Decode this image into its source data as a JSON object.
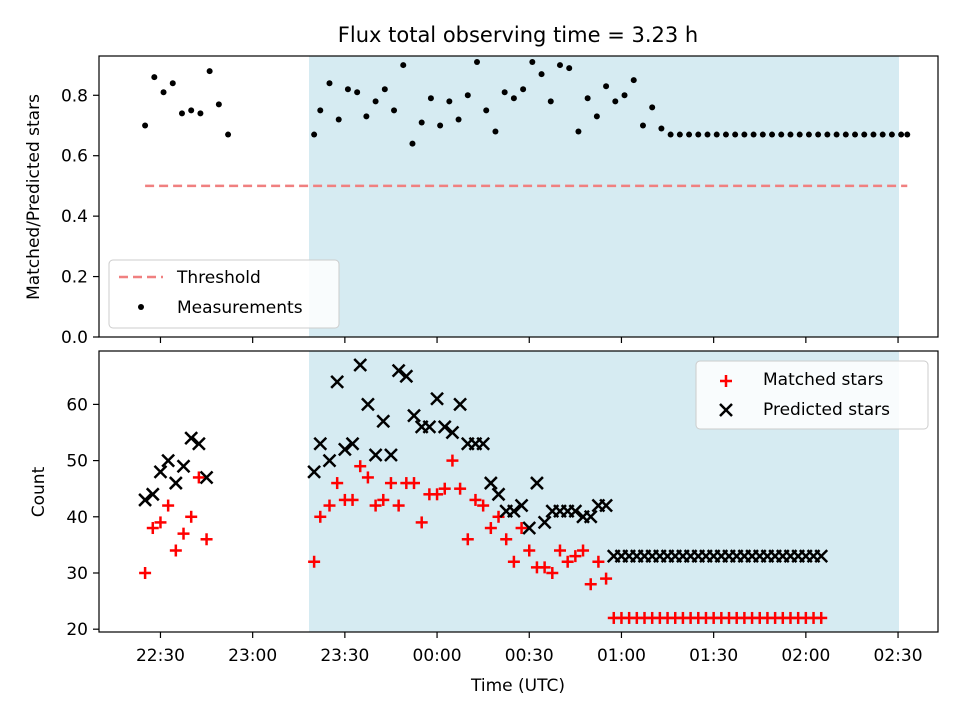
{
  "title": "Flux total observing time = 3.23 h",
  "colors": {
    "threshold": "#f08080",
    "measurement": "#000000",
    "matched": "#ff0000",
    "predicted": "#000000",
    "shade": "#add8e6"
  },
  "chart_data": [
    {
      "type": "scatter",
      "ylabel": "Matched/Predicted stars",
      "ylim": [
        0,
        0.93
      ],
      "yticks": [
        0.0,
        0.2,
        0.4,
        0.6,
        0.8
      ],
      "ytick_labels": [
        "0.0",
        "0.2",
        "0.4",
        "0.6",
        "0.8"
      ],
      "legend_position": "lower left",
      "shaded_region": [
        "23:20",
        "02:33"
      ],
      "series": [
        {
          "name": "Threshold",
          "style": "dashed-line",
          "x": [
            "22:25",
            "02:33"
          ],
          "y": [
            0.5,
            0.5
          ]
        },
        {
          "name": "Measurements",
          "style": "dot",
          "x": [
            "22:25",
            "22:28",
            "22:31",
            "22:34",
            "22:37",
            "22:40",
            "22:43",
            "22:46",
            "22:49",
            "22:52",
            "23:20",
            "23:22",
            "23:25",
            "23:28",
            "23:31",
            "23:34",
            "23:37",
            "23:40",
            "23:43",
            "23:46",
            "23:49",
            "23:52",
            "23:55",
            "23:58",
            "00:01",
            "00:04",
            "00:07",
            "00:10",
            "00:13",
            "00:16",
            "00:19",
            "00:22",
            "00:25",
            "00:28",
            "00:31",
            "00:34",
            "00:37",
            "00:40",
            "00:43",
            "00:46",
            "00:49",
            "00:52",
            "00:55",
            "00:58",
            "01:01",
            "01:04",
            "01:07",
            "01:10",
            "01:13",
            "01:16",
            "01:19",
            "01:22",
            "01:25",
            "01:28",
            "01:31",
            "01:34",
            "01:37",
            "01:40",
            "01:43",
            "01:46",
            "01:49",
            "01:52",
            "01:55",
            "01:58",
            "02:01",
            "02:04",
            "02:07",
            "02:10",
            "02:13",
            "02:16",
            "02:19",
            "02:22",
            "02:25",
            "02:28",
            "02:31",
            "02:33"
          ],
          "y": [
            0.7,
            0.86,
            0.81,
            0.84,
            0.74,
            0.75,
            0.74,
            0.88,
            0.77,
            0.67,
            0.67,
            0.75,
            0.84,
            0.72,
            0.82,
            0.81,
            0.73,
            0.78,
            0.82,
            0.75,
            0.9,
            0.64,
            0.71,
            0.79,
            0.7,
            0.78,
            0.72,
            0.8,
            0.91,
            0.75,
            0.68,
            0.81,
            0.79,
            0.82,
            0.91,
            0.87,
            0.78,
            0.9,
            0.89,
            0.68,
            0.79,
            0.73,
            0.83,
            0.78,
            0.8,
            0.85,
            0.7,
            0.76,
            0.69,
            0.67,
            0.67,
            0.67,
            0.67,
            0.67,
            0.67,
            0.67,
            0.67,
            0.67,
            0.67,
            0.67,
            0.67,
            0.67,
            0.67,
            0.67,
            0.67,
            0.67,
            0.67,
            0.67,
            0.67,
            0.67,
            0.67,
            0.67,
            0.67,
            0.67,
            0.67,
            0.67
          ]
        }
      ]
    },
    {
      "type": "scatter",
      "xlabel": "Time (UTC)",
      "ylabel": "Count",
      "xlim": [
        "22:10",
        "02:43"
      ],
      "ylim": [
        19.5,
        69.5
      ],
      "yticks": [
        20,
        30,
        40,
        50,
        60
      ],
      "ytick_labels": [
        "20",
        "30",
        "40",
        "50",
        "60"
      ],
      "xticks": [
        "22:30",
        "23:00",
        "23:30",
        "00:00",
        "00:30",
        "01:00",
        "01:30",
        "02:00",
        "02:30"
      ],
      "legend_position": "upper right",
      "shaded_region": [
        "23:20",
        "02:33"
      ],
      "series": [
        {
          "name": "Matched stars",
          "style": "plus",
          "x": [
            "22:25",
            "22:27.5",
            "22:30",
            "22:32.5",
            "22:35",
            "22:37.5",
            "22:40",
            "22:42.5",
            "22:45",
            "23:20",
            "23:22",
            "23:25",
            "23:27.5",
            "23:30",
            "23:32.5",
            "23:35",
            "23:37.5",
            "23:40",
            "23:42.5",
            "23:45",
            "23:47.5",
            "23:50",
            "23:52.5",
            "23:55",
            "23:57.5",
            "00:00",
            "00:02.5",
            "00:05",
            "00:07.5",
            "00:10",
            "00:12.5",
            "00:15",
            "00:17.5",
            "00:20",
            "00:22.5",
            "00:25",
            "00:27.5",
            "00:30",
            "00:32.5",
            "00:35",
            "00:37.5",
            "00:40",
            "00:42.5",
            "00:45",
            "00:47.5",
            "00:50",
            "00:52.5",
            "00:55",
            "00:57.5",
            "01:00",
            "01:02.5",
            "01:05",
            "01:07.5",
            "01:10",
            "01:12.5",
            "01:15",
            "01:17.5",
            "01:20",
            "01:22.5",
            "01:25",
            "01:27.5",
            "01:30",
            "01:32.5",
            "01:35",
            "01:37.5",
            "01:40",
            "01:42.5",
            "01:45",
            "01:47.5",
            "01:50",
            "01:52.5",
            "01:55",
            "01:57.5",
            "02:00",
            "02:02.5",
            "02:05"
          ],
          "y": [
            30,
            38,
            39,
            42,
            34,
            37,
            40,
            47,
            36,
            32,
            40,
            42,
            46,
            43,
            43,
            49,
            47,
            42,
            43,
            46,
            42,
            46,
            46,
            39,
            44,
            44,
            45,
            50,
            45,
            36,
            43,
            42,
            38,
            40,
            36,
            32,
            38,
            34,
            31,
            31,
            30,
            34,
            32,
            33,
            34,
            28,
            32,
            29,
            22,
            22,
            22,
            22,
            22,
            22,
            22,
            22,
            22,
            22,
            22,
            22,
            22,
            22,
            22,
            22,
            22,
            22,
            22,
            22,
            22,
            22,
            22,
            22,
            22,
            22,
            22,
            22
          ]
        },
        {
          "name": "Predicted stars",
          "style": "x",
          "x": [
            "22:25",
            "22:27.5",
            "22:30",
            "22:32.5",
            "22:35",
            "22:37.5",
            "22:40",
            "22:42.5",
            "22:45",
            "23:20",
            "23:22",
            "23:25",
            "23:27.5",
            "23:30",
            "23:32.5",
            "23:35",
            "23:37.5",
            "23:40",
            "23:42.5",
            "23:45",
            "23:47.5",
            "23:50",
            "23:52.5",
            "23:55",
            "23:57.5",
            "00:00",
            "00:02.5",
            "00:05",
            "00:07.5",
            "00:10",
            "00:12.5",
            "00:15",
            "00:17.5",
            "00:20",
            "00:22.5",
            "00:25",
            "00:27.5",
            "00:30",
            "00:32.5",
            "00:35",
            "00:37.5",
            "00:40",
            "00:42.5",
            "00:45",
            "00:47.5",
            "00:50",
            "00:52.5",
            "00:55",
            "00:57.5",
            "01:00",
            "01:02.5",
            "01:05",
            "01:07.5",
            "01:10",
            "01:12.5",
            "01:15",
            "01:17.5",
            "01:20",
            "01:22.5",
            "01:25",
            "01:27.5",
            "01:30",
            "01:32.5",
            "01:35",
            "01:37.5",
            "01:40",
            "01:42.5",
            "01:45",
            "01:47.5",
            "01:50",
            "01:52.5",
            "01:55",
            "01:57.5",
            "02:00",
            "02:02.5",
            "02:05"
          ],
          "y": [
            43,
            44,
            48,
            50,
            46,
            49,
            54,
            53,
            47,
            48,
            53,
            50,
            64,
            52,
            53,
            67,
            60,
            51,
            57,
            51,
            66,
            65,
            58,
            56,
            56,
            61,
            56,
            55,
            60,
            53,
            53,
            53,
            46,
            44,
            41,
            41,
            42,
            38,
            46,
            39,
            41,
            41,
            41,
            41,
            40,
            40,
            42,
            42,
            33,
            33,
            33,
            33,
            33,
            33,
            33,
            33,
            33,
            33,
            33,
            33,
            33,
            33,
            33,
            33,
            33,
            33,
            33,
            33,
            33,
            33,
            33,
            33,
            33,
            33,
            33,
            33
          ]
        }
      ]
    }
  ]
}
